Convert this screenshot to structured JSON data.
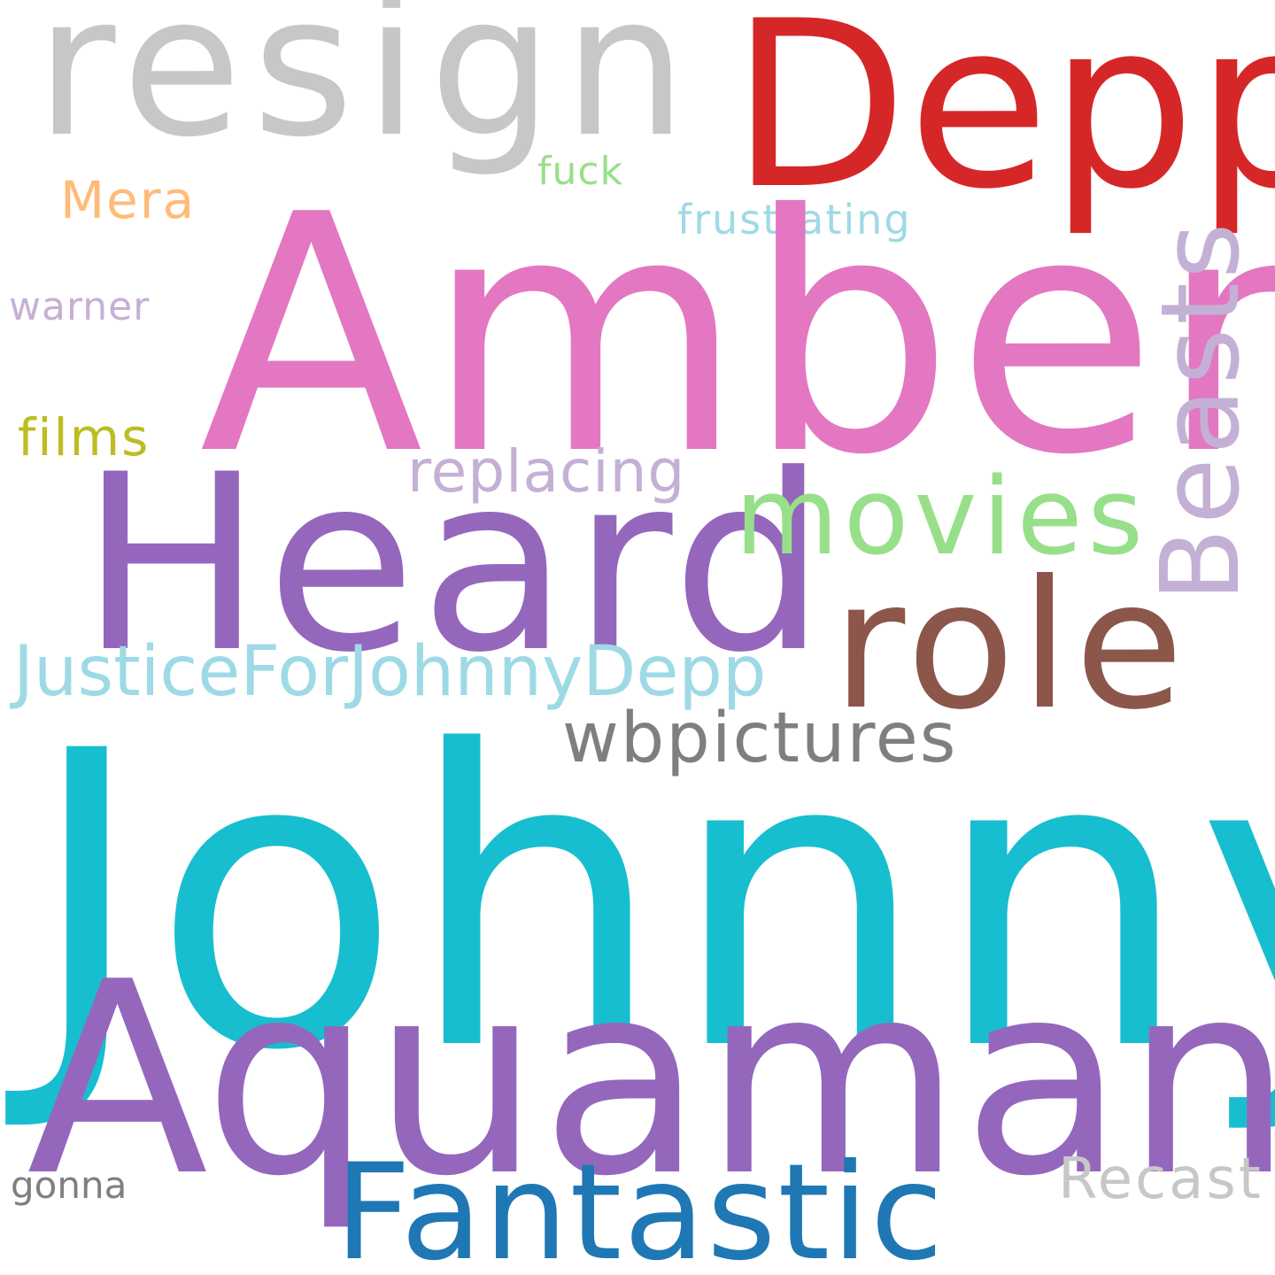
{
  "words": {
    "johnny": {
      "text": "Johnny",
      "color": "#17becf"
    },
    "amber": {
      "text": "Amber",
      "color": "#e377c2"
    },
    "heard": {
      "text": "Heard",
      "color": "#9467bd"
    },
    "aquaman": {
      "text": "Aquaman",
      "color": "#9467bd"
    },
    "depp": {
      "text": "Depp",
      "color": "#d62728"
    },
    "resign": {
      "text": "resign",
      "color": "#c7c7c7"
    },
    "role": {
      "text": "role",
      "color": "#8c564b"
    },
    "fantastic": {
      "text": "Fantastic",
      "color": "#1f77b4"
    },
    "movies": {
      "text": "movies",
      "color": "#98df8a"
    },
    "beasts": {
      "text": "Beasts",
      "color": "#c5b0d5"
    },
    "justice": {
      "text": "JusticeForJohnnyDepp",
      "color": "#9edae5"
    },
    "wbpictures": {
      "text": "wbpictures",
      "color": "#7f7f7f"
    },
    "replacing": {
      "text": "replacing",
      "color": "#c5b0d5"
    },
    "recast": {
      "text": "Recast",
      "color": "#c7c7c7"
    },
    "films": {
      "text": "films",
      "color": "#bcbd22"
    },
    "mera": {
      "text": "Mera",
      "color": "#ffbb78"
    },
    "frustrating": {
      "text": "frustrating",
      "color": "#9edae5"
    },
    "warner": {
      "text": "warner",
      "color": "#c5b0d5"
    },
    "fuck": {
      "text": "fuck",
      "color": "#98df8a"
    },
    "gonna": {
      "text": "gonna",
      "color": "#7f7f7f"
    }
  }
}
